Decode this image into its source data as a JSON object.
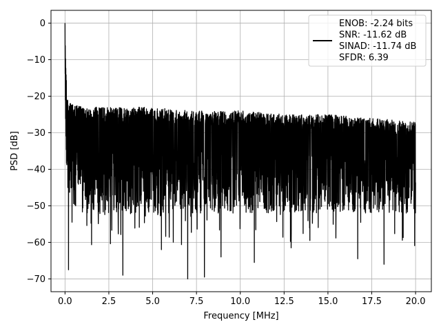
{
  "chart_data": {
    "type": "line",
    "title": "",
    "xlabel": "Frequency [MHz]",
    "ylabel": "PSD [dB]",
    "xlim": [
      -0.8,
      20.9
    ],
    "ylim": [
      -73.5,
      3.5
    ],
    "xticks": [
      0.0,
      2.5,
      5.0,
      7.5,
      10.0,
      12.5,
      15.0,
      17.5,
      20.0
    ],
    "xtick_labels": [
      "0.0",
      "2.5",
      "5.0",
      "7.5",
      "10.0",
      "12.5",
      "15.0",
      "17.5",
      "20.0"
    ],
    "yticks": [
      0,
      -10,
      -20,
      -30,
      -40,
      -50,
      -60,
      -70
    ],
    "ytick_labels": [
      "0",
      "−10",
      "−20",
      "−30",
      "−40",
      "−50",
      "−60",
      "−70"
    ],
    "grid": true,
    "legend_position": "top-right",
    "series": [
      {
        "color": "#000000",
        "description": "Dense noisy spectrum from 0 to 20 MHz: 0 dB peak at DC decaying to about -20 dB near 0.1 MHz; noise floor band roughly -22 to -45 dB with dips to -70 dB",
        "x": [
          0.0,
          0.02,
          0.05,
          0.1,
          0.2,
          0.5,
          1.0,
          2.5,
          5.0,
          7.5,
          10.0,
          12.5,
          15.0,
          17.5,
          20.0
        ],
        "envelope_upper": [
          0,
          -8,
          -13,
          -18,
          -22,
          -22,
          -23,
          -23,
          -23,
          -24,
          -24,
          -25,
          -25,
          -26,
          -27
        ],
        "envelope_lower": [
          -10,
          -20,
          -30,
          -42,
          -47,
          -50,
          -52,
          -52,
          -52,
          -52,
          -52,
          -52,
          -52,
          -52,
          -52
        ],
        "deep_dips": [
          {
            "x": 0.2,
            "y": -67.5
          },
          {
            "x": 3.3,
            "y": -69.0
          },
          {
            "x": 7.0,
            "y": -70.0
          },
          {
            "x": 7.95,
            "y": -69.5
          },
          {
            "x": 5.5,
            "y": -62.0
          },
          {
            "x": 8.9,
            "y": -64.0
          },
          {
            "x": 10.8,
            "y": -65.5
          },
          {
            "x": 12.9,
            "y": -61.5
          },
          {
            "x": 16.7,
            "y": -64.5
          },
          {
            "x": 18.2,
            "y": -66.0
          }
        ]
      }
    ],
    "legend_lines": [
      "ENOB: -2.24 bits",
      "SNR: -11.62 dB",
      "SINAD: -11.74 dB",
      "SFDR: 6.39"
    ]
  }
}
